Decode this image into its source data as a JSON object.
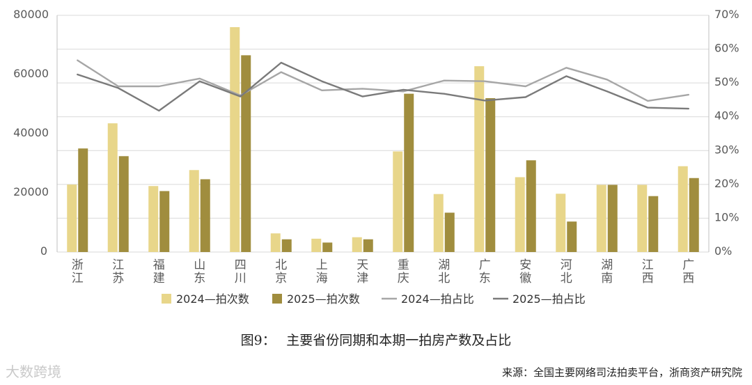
{
  "chart_data": {
    "type": "bar",
    "categories": [
      [
        "浙",
        "江"
      ],
      [
        "江",
        "苏"
      ],
      [
        "福",
        "建"
      ],
      [
        "山",
        "东"
      ],
      [
        "四",
        "川"
      ],
      [
        "北",
        "京"
      ],
      [
        "上",
        "海"
      ],
      [
        "天",
        "津"
      ],
      [
        "重",
        "庆"
      ],
      [
        "湖",
        "北"
      ],
      [
        "广",
        "东"
      ],
      [
        "安",
        "徽"
      ],
      [
        "河",
        "北"
      ],
      [
        "湖",
        "南"
      ],
      [
        "江",
        "西"
      ],
      [
        "广",
        "西"
      ]
    ],
    "bar_series": [
      {
        "name": "2024—拍次数",
        "color": "#e8d68a",
        "values": [
          22800,
          43500,
          22300,
          27700,
          76000,
          6300,
          4500,
          5000,
          34000,
          19600,
          62800,
          25300,
          19700,
          22700,
          22700,
          29000
        ]
      },
      {
        "name": "2025—拍次数",
        "color": "#a08d3e",
        "values": [
          35000,
          32400,
          20600,
          24600,
          66500,
          4300,
          3200,
          4300,
          53500,
          13300,
          52000,
          31000,
          10300,
          22700,
          18900,
          25000
        ]
      }
    ],
    "line_series": [
      {
        "name": "2024—拍占比",
        "color": "#a6a6a6",
        "values": [
          0.567,
          0.49,
          0.49,
          0.513,
          0.463,
          0.532,
          0.478,
          0.483,
          0.475,
          0.507,
          0.505,
          0.49,
          0.545,
          0.51,
          0.447,
          0.465
        ]
      },
      {
        "name": "2025—拍占比",
        "color": "#7a7a7a",
        "values": [
          0.525,
          0.485,
          0.418,
          0.505,
          0.46,
          0.56,
          0.505,
          0.46,
          0.48,
          0.468,
          0.448,
          0.458,
          0.52,
          0.475,
          0.427,
          0.424
        ]
      }
    ],
    "y_left": {
      "min": 0,
      "max": 80000,
      "ticks": [
        "0",
        "20000",
        "40000",
        "60000",
        "80000"
      ]
    },
    "y_right": {
      "min": 0,
      "max": 0.7,
      "ticks": [
        "0%",
        "10%",
        "20%",
        "30%",
        "40%",
        "50%",
        "60%",
        "70%"
      ]
    },
    "grid": true,
    "legend_position": "bottom"
  },
  "caption": "图9：　 主要省份同期和本期一拍房产数及占比",
  "source": "来源：全国主要网络司法拍卖平台，浙商资产研究院",
  "watermark": "大数跨境"
}
